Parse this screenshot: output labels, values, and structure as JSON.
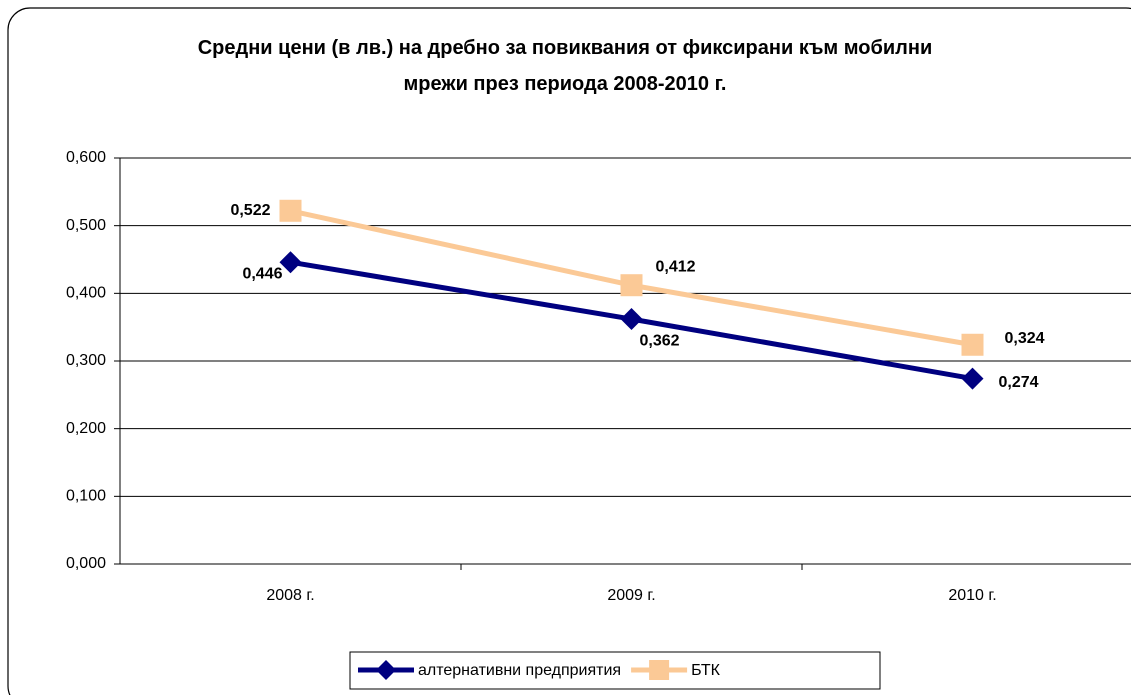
{
  "chart_data": {
    "type": "line",
    "title": "Средни цени (в лв.) на дребно за повиквания от фиксирани към мобилни мрежи през периода 2008-2010 г.",
    "categories": [
      "2008 г.",
      "2009 г.",
      "2010 г."
    ],
    "series": [
      {
        "name": "алтернативни предприятия",
        "color": "#000080",
        "marker": "diamond",
        "values": [
          0.446,
          0.362,
          0.274
        ],
        "value_labels": [
          "0,446",
          "0,362",
          "0,274"
        ]
      },
      {
        "name": "БТК",
        "color": "#fbc996",
        "marker": "square",
        "values": [
          0.522,
          0.412,
          0.324
        ],
        "value_labels": [
          "0,522",
          "0,412",
          "0,324"
        ]
      }
    ],
    "ylim": [
      0,
      0.6
    ],
    "yticks": [
      {
        "value": 0,
        "label": "0,000"
      },
      {
        "value": 0.1,
        "label": "0,100"
      },
      {
        "value": 0.2,
        "label": "0,200"
      },
      {
        "value": 0.3,
        "label": "0,300"
      },
      {
        "value": 0.4,
        "label": "0,400"
      },
      {
        "value": 0.5,
        "label": "0,500"
      },
      {
        "value": 0.6,
        "label": "0,600"
      }
    ],
    "grid": true,
    "legend": "bottom"
  }
}
